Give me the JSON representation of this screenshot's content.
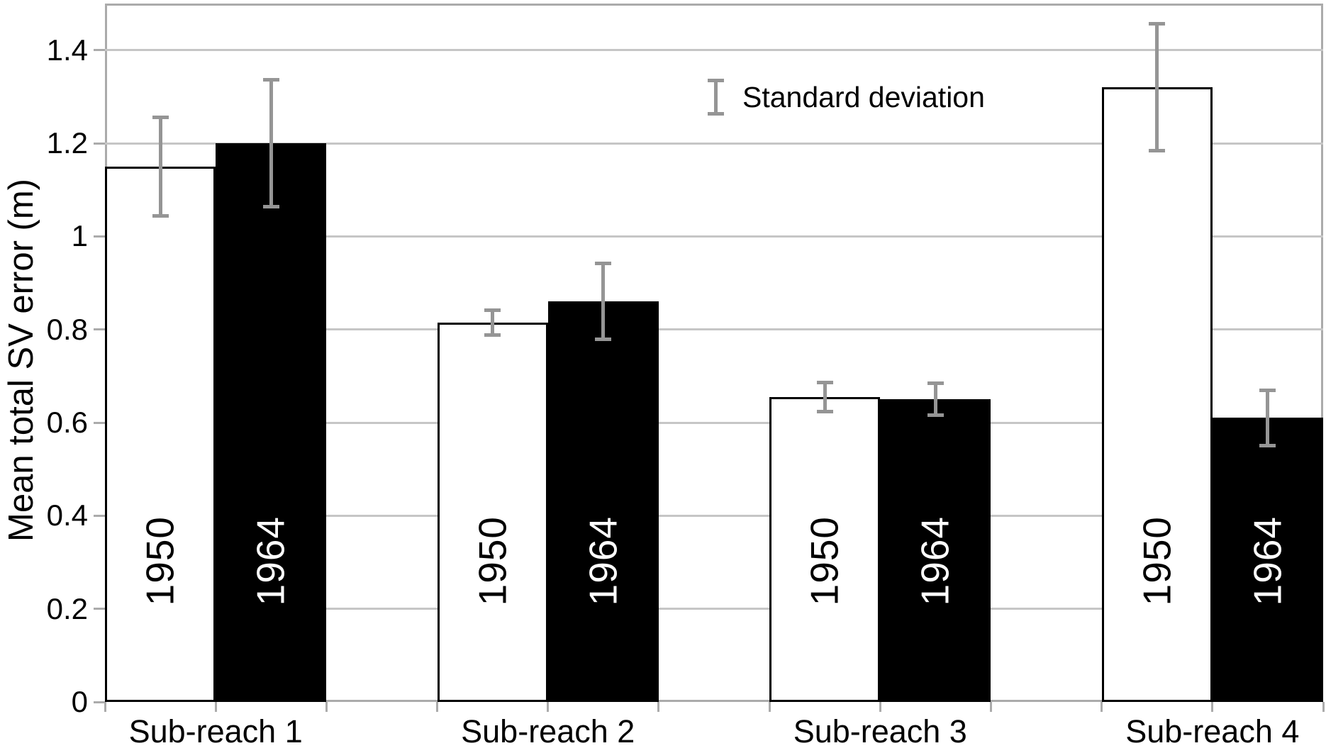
{
  "chart_data": {
    "type": "bar",
    "title": "",
    "xlabel": "",
    "ylabel": "Mean total SV error (m)",
    "legend_label": "Standard deviation",
    "legend_position": "top-center",
    "grid": true,
    "categories": [
      "Sub-reach 1",
      "Sub-reach 2",
      "Sub-reach 3",
      "Sub-reach 4"
    ],
    "series": [
      {
        "name": "1950",
        "values": [
          1.15,
          0.815,
          0.655,
          1.32
        ],
        "sd": [
          0.11,
          0.03,
          0.035,
          0.14
        ],
        "fill": "#ffffff",
        "label_color": "#000000"
      },
      {
        "name": "1964",
        "values": [
          1.2,
          0.86,
          0.65,
          0.61
        ],
        "sd": [
          0.14,
          0.085,
          0.038,
          0.063
        ],
        "fill": "#000000",
        "label_color": "#ffffff"
      }
    ],
    "ylim": [
      0,
      1.5
    ],
    "ytick_values": [
      0,
      0.2,
      0.4,
      0.6,
      0.8,
      1,
      1.2,
      1.4
    ],
    "ytick_labels": [
      "0",
      "0.2",
      "0.4",
      "0.6",
      "0.8",
      "1",
      "1.2",
      "1.4"
    ],
    "colors": {
      "gridline": "#c6c6c6",
      "axis_and_ticks": "#ababab",
      "error_bar": "#959595",
      "bar_outline": "#000000",
      "text": "#000000",
      "background": "#ffffff"
    }
  }
}
